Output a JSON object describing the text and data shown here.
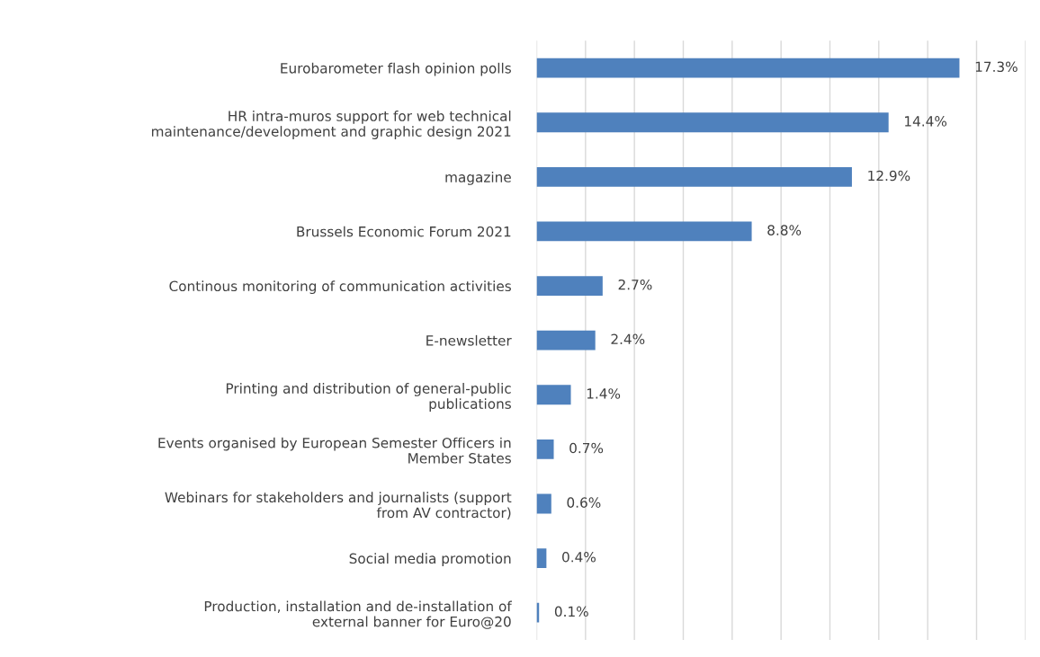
{
  "chart_data": {
    "type": "bar",
    "orientation": "horizontal",
    "categories": [
      "Eurobarometer flash opinion polls",
      "HR intra-muros support for web technical maintenance/development and graphic design 2021",
      "magazine",
      "Brussels Economic Forum 2021",
      "Continous monitoring of communication activities",
      "E-newsletter",
      "Printing and distribution of general-public publications",
      "Events organised by European Semester Officers in Member States",
      "Webinars for stakeholders and journalists (support from AV contractor)",
      "Social media promotion",
      "Production, installation and de-installation of external banner for Euro@20"
    ],
    "values": [
      17.3,
      14.4,
      12.9,
      8.8,
      2.7,
      2.4,
      1.4,
      0.7,
      0.6,
      0.4,
      0.1
    ],
    "value_labels": [
      "17.3%",
      "14.4%",
      "12.9%",
      "8.8%",
      "2.7%",
      "2.4%",
      "1.4%",
      "0.7%",
      "0.6%",
      "0.4%",
      "0.1%"
    ],
    "color": "#4f81bd",
    "xlim": [
      0,
      20
    ],
    "xticks": [
      {
        "value": 0,
        "label": null
      },
      {
        "value": 2,
        "label": null
      },
      {
        "value": 4,
        "label": null
      },
      {
        "value": 6,
        "label": null
      },
      {
        "value": 8,
        "label": null
      },
      {
        "value": 10,
        "label": null
      },
      {
        "value": 12,
        "label": null
      },
      {
        "value": 14,
        "label": null
      },
      {
        "value": 16,
        "label": null
      },
      {
        "value": 18,
        "label": null
      },
      {
        "value": 20,
        "label": null
      }
    ],
    "grid": "x",
    "tick_labels": "y",
    "legend": false
  }
}
